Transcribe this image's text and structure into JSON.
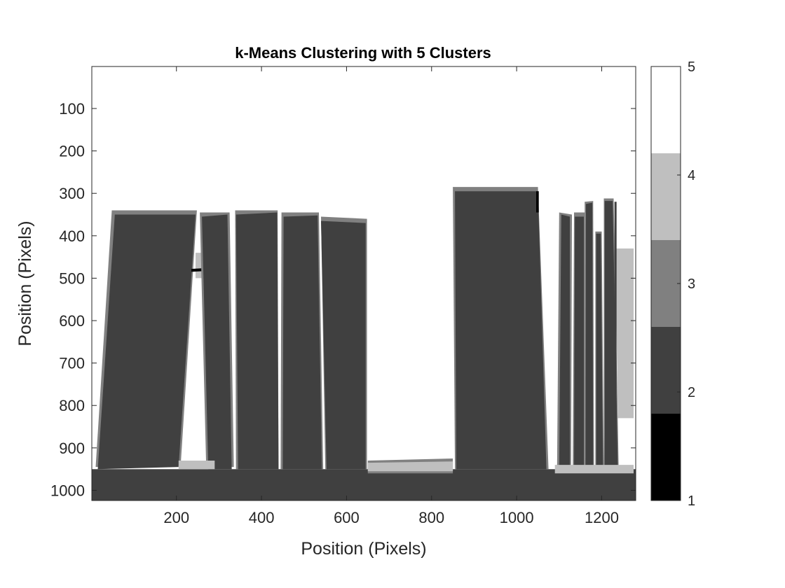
{
  "chart_data": {
    "type": "heatmap",
    "title": "k-Means Clustering with 5 Clusters",
    "xlabel": "Position (Pixels)",
    "ylabel": "Position (Pixels)",
    "xlim": [
      1,
      1280
    ],
    "ylim": [
      1,
      1024
    ],
    "y_reversed": true,
    "x_ticks": [
      200,
      400,
      600,
      800,
      1000,
      1200
    ],
    "y_ticks": [
      100,
      200,
      300,
      400,
      500,
      600,
      700,
      800,
      900,
      1000
    ],
    "colormap": {
      "name": "gray",
      "levels": [
        1,
        2,
        3,
        4,
        5
      ],
      "colors": [
        "#000000",
        "#404040",
        "#808080",
        "#bfbfbf",
        "#ffffff"
      ],
      "ticks": [
        1,
        2,
        3,
        4,
        5
      ]
    },
    "grid": false,
    "background_cluster": 5,
    "regions": [
      {
        "cluster": 2,
        "points": [
          [
            1,
            950
          ],
          [
            1280,
            950
          ],
          [
            1280,
            1024
          ],
          [
            1,
            1024
          ]
        ]
      },
      {
        "cluster": 3,
        "points": [
          [
            650,
            930
          ],
          [
            850,
            925
          ],
          [
            850,
            960
          ],
          [
            650,
            960
          ]
        ]
      },
      {
        "cluster": 4,
        "points": [
          [
            650,
            935
          ],
          [
            850,
            932
          ],
          [
            850,
            955
          ],
          [
            650,
            955
          ]
        ]
      },
      {
        "cluster": 3,
        "points": [
          [
            48,
            340
          ],
          [
            248,
            340
          ],
          [
            210,
            940
          ],
          [
            10,
            945
          ]
        ]
      },
      {
        "cluster": 2,
        "points": [
          [
            55,
            350
          ],
          [
            245,
            350
          ],
          [
            205,
            945
          ],
          [
            15,
            950
          ]
        ]
      },
      {
        "cluster": 4,
        "points": [
          [
            245,
            440
          ],
          [
            290,
            440
          ],
          [
            290,
            500
          ],
          [
            245,
            500
          ]
        ]
      },
      {
        "cluster": 1,
        "points": [
          [
            235,
            478
          ],
          [
            290,
            475
          ],
          [
            290,
            482
          ],
          [
            235,
            485
          ]
        ]
      },
      {
        "cluster": 3,
        "points": [
          [
            255,
            345
          ],
          [
            325,
            345
          ],
          [
            335,
            945
          ],
          [
            270,
            945
          ]
        ]
      },
      {
        "cluster": 2,
        "points": [
          [
            260,
            355
          ],
          [
            320,
            350
          ],
          [
            330,
            950
          ],
          [
            275,
            950
          ]
        ]
      },
      {
        "cluster": 4,
        "points": [
          [
            205,
            930
          ],
          [
            290,
            930
          ],
          [
            290,
            950
          ],
          [
            205,
            950
          ]
        ]
      },
      {
        "cluster": 3,
        "points": [
          [
            338,
            340
          ],
          [
            438,
            340
          ],
          [
            440,
            950
          ],
          [
            340,
            950
          ]
        ]
      },
      {
        "cluster": 2,
        "points": [
          [
            340,
            350
          ],
          [
            437,
            345
          ],
          [
            440,
            950
          ],
          [
            345,
            950
          ]
        ]
      },
      {
        "cluster": 3,
        "points": [
          [
            447,
            345
          ],
          [
            535,
            345
          ],
          [
            545,
            950
          ],
          [
            445,
            950
          ]
        ]
      },
      {
        "cluster": 2,
        "points": [
          [
            452,
            355
          ],
          [
            532,
            352
          ],
          [
            542,
            950
          ],
          [
            450,
            950
          ]
        ]
      },
      {
        "cluster": 3,
        "points": [
          [
            540,
            355
          ],
          [
            648,
            360
          ],
          [
            648,
            950
          ],
          [
            550,
            950
          ]
        ]
      },
      {
        "cluster": 2,
        "points": [
          [
            540,
            365
          ],
          [
            645,
            370
          ],
          [
            645,
            950
          ],
          [
            553,
            950
          ]
        ]
      },
      {
        "cluster": 3,
        "points": [
          [
            850,
            285
          ],
          [
            1050,
            285
          ],
          [
            1075,
            950
          ],
          [
            855,
            950
          ]
        ]
      },
      {
        "cluster": 2,
        "points": [
          [
            855,
            295
          ],
          [
            1050,
            295
          ],
          [
            1070,
            950
          ],
          [
            858,
            950
          ]
        ]
      },
      {
        "cluster": 1,
        "points": [
          [
            1046,
            295
          ],
          [
            1052,
            295
          ],
          [
            1052,
            345
          ],
          [
            1046,
            345
          ]
        ]
      },
      {
        "cluster": 3,
        "points": [
          [
            1100,
            345
          ],
          [
            1130,
            350
          ],
          [
            1128,
            950
          ],
          [
            1095,
            950
          ]
        ]
      },
      {
        "cluster": 2,
        "points": [
          [
            1105,
            350
          ],
          [
            1125,
            355
          ],
          [
            1125,
            950
          ],
          [
            1100,
            950
          ]
        ]
      },
      {
        "cluster": 3,
        "points": [
          [
            1135,
            345
          ],
          [
            1160,
            345
          ],
          [
            1160,
            950
          ],
          [
            1132,
            950
          ]
        ]
      },
      {
        "cluster": 2,
        "points": [
          [
            1137,
            355
          ],
          [
            1158,
            355
          ],
          [
            1158,
            950
          ],
          [
            1135,
            950
          ]
        ]
      },
      {
        "cluster": 3,
        "points": [
          [
            1160,
            320
          ],
          [
            1180,
            318
          ],
          [
            1182,
            950
          ],
          [
            1160,
            950
          ]
        ]
      },
      {
        "cluster": 2,
        "points": [
          [
            1163,
            325
          ],
          [
            1178,
            322
          ],
          [
            1180,
            950
          ],
          [
            1162,
            950
          ]
        ]
      },
      {
        "cluster": 3,
        "points": [
          [
            1185,
            390
          ],
          [
            1200,
            390
          ],
          [
            1205,
            950
          ],
          [
            1185,
            950
          ]
        ]
      },
      {
        "cluster": 2,
        "points": [
          [
            1187,
            395
          ],
          [
            1198,
            395
          ],
          [
            1203,
            950
          ],
          [
            1187,
            950
          ]
        ]
      },
      {
        "cluster": 3,
        "points": [
          [
            1205,
            312
          ],
          [
            1228,
            312
          ],
          [
            1240,
            950
          ],
          [
            1205,
            950
          ]
        ]
      },
      {
        "cluster": 2,
        "points": [
          [
            1207,
            318
          ],
          [
            1226,
            318
          ],
          [
            1238,
            950
          ],
          [
            1207,
            950
          ]
        ]
      },
      {
        "cluster": 4,
        "points": [
          [
            1232,
            430
          ],
          [
            1275,
            430
          ],
          [
            1275,
            830
          ],
          [
            1238,
            830
          ]
        ]
      },
      {
        "cluster": 2,
        "points": [
          [
            1230,
            320
          ],
          [
            1235,
            320
          ],
          [
            1235,
            945
          ],
          [
            1230,
            945
          ]
        ]
      },
      {
        "cluster": 4,
        "points": [
          [
            1090,
            940
          ],
          [
            1275,
            940
          ],
          [
            1275,
            960
          ],
          [
            1090,
            960
          ]
        ]
      }
    ]
  }
}
